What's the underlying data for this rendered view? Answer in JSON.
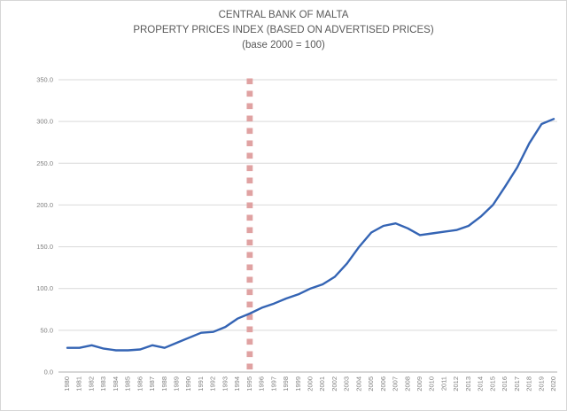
{
  "title": {
    "line1": "CENTRAL BANK OF MALTA",
    "line2": "PROPERTY PRICES INDEX (BASED ON ADVERTISED PRICES)",
    "line3": "(base 2000 = 100)"
  },
  "colors": {
    "title_text": "#595959",
    "tick_text": "#808080",
    "gridline": "#d9d9d9",
    "axis_line": "#bfbfbf",
    "series_line": "#3464b4",
    "marker_line": "#df9e9e",
    "background": "#ffffff"
  },
  "chart_data": {
    "type": "line",
    "title": "CENTRAL BANK OF MALTA",
    "subtitle": "PROPERTY PRICES INDEX (BASED ON ADVERTISED PRICES)",
    "base_note": "(base 2000 = 100)",
    "categories": [
      "1980",
      "1981",
      "1982",
      "1983",
      "1984",
      "1985",
      "1986",
      "1987",
      "1988",
      "1989",
      "1990",
      "1991",
      "1992",
      "1993",
      "1994",
      "1995",
      "1996",
      "1997",
      "1998",
      "1999",
      "2000",
      "2001",
      "2002",
      "2003",
      "2004",
      "2005",
      "2006",
      "2007",
      "2008",
      "2009",
      "2010",
      "2011",
      "2012",
      "2013",
      "2014",
      "2015",
      "2016",
      "2017",
      "2018",
      "2019",
      "2020"
    ],
    "series": [
      {
        "name": "Property Prices Index (based on advertised prices)",
        "color": "#3464b4",
        "values": [
          29,
          29,
          32,
          28,
          26,
          26,
          27,
          32,
          29,
          35,
          41,
          47,
          48,
          54,
          64,
          70,
          77,
          82,
          88,
          93,
          100,
          105,
          114,
          130,
          150,
          167,
          175,
          178,
          172,
          164,
          166,
          168,
          170,
          175,
          186,
          200,
          222,
          245,
          274,
          297,
          303
        ]
      }
    ],
    "xlabel": "",
    "ylabel": "",
    "ylim": [
      0,
      350
    ],
    "y_tick_step": 50,
    "y_ticks": [
      "0.0",
      "50.0",
      "100.0",
      "150.0",
      "200.0",
      "250.0",
      "300.0",
      "350.0"
    ],
    "grid": true,
    "legend": "none",
    "x_tick_rotation": -90,
    "marker_line": {
      "x": "1995",
      "color": "#df9e9e",
      "style": "dashed-square"
    }
  }
}
